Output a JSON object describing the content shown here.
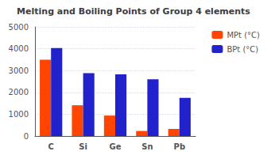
{
  "chart_data": {
    "type": "bar",
    "title": "Melting and Boiling Points of Group 4 elements",
    "categories": [
      "C",
      "Si",
      "Ge",
      "Sn",
      "Pb"
    ],
    "series": [
      {
        "name": "MPt (°C)",
        "color": "#FF4500",
        "values": [
          3500,
          1410,
          938,
          232,
          327
        ]
      },
      {
        "name": "BPt (°C)",
        "color": "#2222CC",
        "values": [
          4027,
          2880,
          2830,
          2602,
          1749
        ]
      }
    ],
    "ylim": [
      0,
      5000
    ],
    "yticks": [
      0,
      1000,
      2000,
      3000,
      4000,
      5000
    ],
    "grid": true,
    "legend": "right"
  }
}
